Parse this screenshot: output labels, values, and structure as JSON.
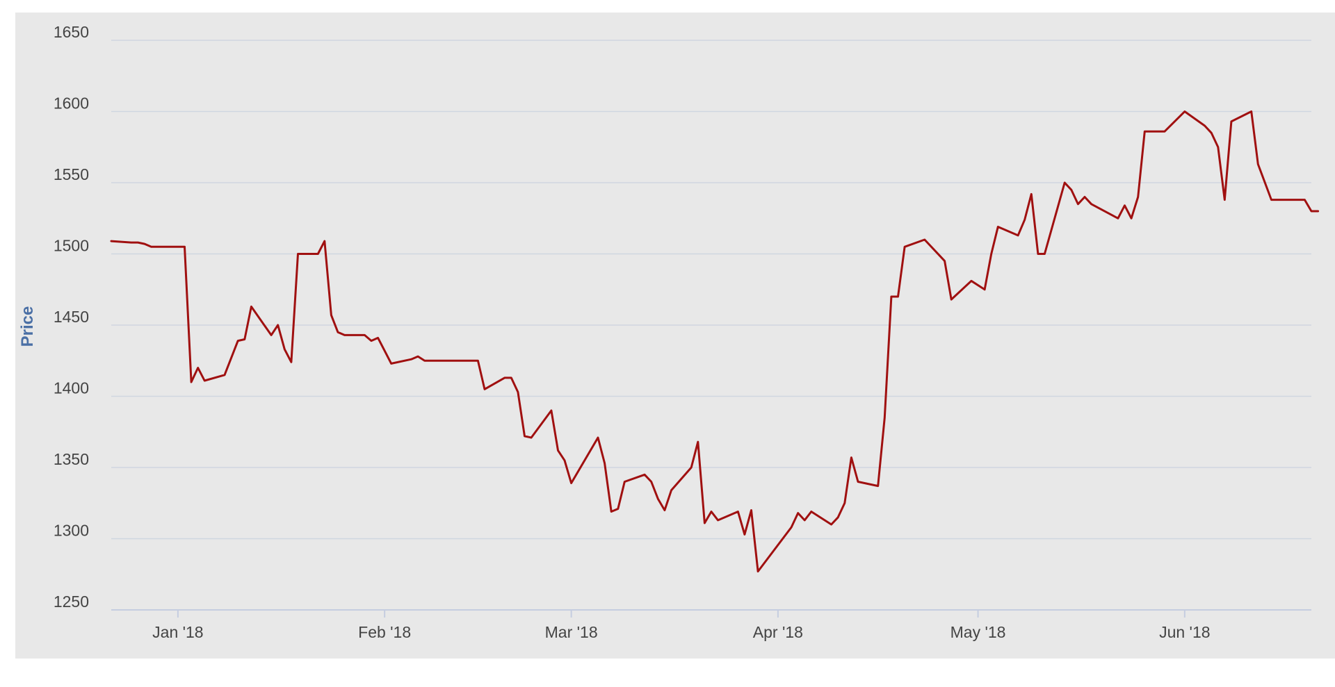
{
  "chart_data": {
    "type": "line",
    "title": "",
    "xlabel": "",
    "ylabel": "Price",
    "ylim": [
      1250,
      1650
    ],
    "yticks": [
      1250,
      1300,
      1350,
      1400,
      1450,
      1500,
      1550,
      1600,
      1650
    ],
    "xlim": [
      "2017-12-22",
      "2018-06-20"
    ],
    "xticks": [
      {
        "label": "Jan '18",
        "date": "2018-01-01"
      },
      {
        "label": "Feb '18",
        "date": "2018-02-01"
      },
      {
        "label": "Mar '18",
        "date": "2018-03-01"
      },
      {
        "label": "Apr '18",
        "date": "2018-04-01"
      },
      {
        "label": "May '18",
        "date": "2018-05-01"
      },
      {
        "label": "Jun '18",
        "date": "2018-06-01"
      }
    ],
    "grid": "horizontal",
    "legend": "none",
    "colors": {
      "background": "#e8e8e8",
      "line": "#a01010",
      "grid": "#cfd6e0",
      "axis": "#c5cde0"
    },
    "series": [
      {
        "color": "#a01010",
        "points": [
          [
            "2017-12-22",
            1509
          ],
          [
            "2017-12-25",
            1508
          ],
          [
            "2017-12-26",
            1508
          ],
          [
            "2017-12-27",
            1507
          ],
          [
            "2017-12-28",
            1505
          ],
          [
            "2017-12-31",
            1505
          ],
          [
            "2018-01-01",
            1505
          ],
          [
            "2018-01-02",
            1505
          ],
          [
            "2018-01-03",
            1410
          ],
          [
            "2018-01-04",
            1420
          ],
          [
            "2018-01-05",
            1411
          ],
          [
            "2018-01-08",
            1415
          ],
          [
            "2018-01-10",
            1439
          ],
          [
            "2018-01-11",
            1440
          ],
          [
            "2018-01-12",
            1463
          ],
          [
            "2018-01-15",
            1443
          ],
          [
            "2018-01-16",
            1450
          ],
          [
            "2018-01-17",
            1433
          ],
          [
            "2018-01-18",
            1424
          ],
          [
            "2018-01-19",
            1500
          ],
          [
            "2018-01-22",
            1500
          ],
          [
            "2018-01-23",
            1509
          ],
          [
            "2018-01-24",
            1457
          ],
          [
            "2018-01-25",
            1445
          ],
          [
            "2018-01-26",
            1443
          ],
          [
            "2018-01-29",
            1443
          ],
          [
            "2018-01-30",
            1439
          ],
          [
            "2018-01-31",
            1441
          ],
          [
            "2018-02-02",
            1423
          ],
          [
            "2018-02-05",
            1426
          ],
          [
            "2018-02-06",
            1428
          ],
          [
            "2018-02-07",
            1425
          ],
          [
            "2018-02-15",
            1425
          ],
          [
            "2018-02-16",
            1405
          ],
          [
            "2018-02-19",
            1413
          ],
          [
            "2018-02-20",
            1413
          ],
          [
            "2018-02-21",
            1403
          ],
          [
            "2018-02-22",
            1372
          ],
          [
            "2018-02-23",
            1371
          ],
          [
            "2018-02-26",
            1390
          ],
          [
            "2018-02-27",
            1362
          ],
          [
            "2018-02-28",
            1355
          ],
          [
            "2018-03-01",
            1339
          ],
          [
            "2018-03-05",
            1371
          ],
          [
            "2018-03-06",
            1353
          ],
          [
            "2018-03-07",
            1319
          ],
          [
            "2018-03-08",
            1321
          ],
          [
            "2018-03-09",
            1340
          ],
          [
            "2018-03-12",
            1345
          ],
          [
            "2018-03-13",
            1340
          ],
          [
            "2018-03-14",
            1328
          ],
          [
            "2018-03-15",
            1320
          ],
          [
            "2018-03-16",
            1334
          ],
          [
            "2018-03-19",
            1350
          ],
          [
            "2018-03-20",
            1368
          ],
          [
            "2018-03-21",
            1311
          ],
          [
            "2018-03-22",
            1319
          ],
          [
            "2018-03-23",
            1313
          ],
          [
            "2018-03-26",
            1319
          ],
          [
            "2018-03-27",
            1303
          ],
          [
            "2018-03-28",
            1320
          ],
          [
            "2018-03-29",
            1277
          ],
          [
            "2018-04-03",
            1308
          ],
          [
            "2018-04-04",
            1318
          ],
          [
            "2018-04-05",
            1313
          ],
          [
            "2018-04-06",
            1319
          ],
          [
            "2018-04-09",
            1310
          ],
          [
            "2018-04-10",
            1315
          ],
          [
            "2018-04-11",
            1325
          ],
          [
            "2018-04-12",
            1357
          ],
          [
            "2018-04-13",
            1340
          ],
          [
            "2018-04-16",
            1337
          ],
          [
            "2018-04-17",
            1385
          ],
          [
            "2018-04-18",
            1470
          ],
          [
            "2018-04-19",
            1470
          ],
          [
            "2018-04-20",
            1505
          ],
          [
            "2018-04-23",
            1510
          ],
          [
            "2018-04-26",
            1495
          ],
          [
            "2018-04-27",
            1468
          ],
          [
            "2018-04-30",
            1481
          ],
          [
            "2018-05-02",
            1475
          ],
          [
            "2018-05-03",
            1500
          ],
          [
            "2018-05-04",
            1519
          ],
          [
            "2018-05-07",
            1513
          ],
          [
            "2018-05-08",
            1524
          ],
          [
            "2018-05-09",
            1542
          ],
          [
            "2018-05-10",
            1500
          ],
          [
            "2018-05-11",
            1500
          ],
          [
            "2018-05-14",
            1550
          ],
          [
            "2018-05-15",
            1545
          ],
          [
            "2018-05-16",
            1535
          ],
          [
            "2018-05-17",
            1540
          ],
          [
            "2018-05-18",
            1535
          ],
          [
            "2018-05-22",
            1525
          ],
          [
            "2018-05-23",
            1534
          ],
          [
            "2018-05-24",
            1525
          ],
          [
            "2018-05-25",
            1540
          ],
          [
            "2018-05-26",
            1586
          ],
          [
            "2018-05-29",
            1586
          ],
          [
            "2018-06-01",
            1600
          ],
          [
            "2018-06-04",
            1590
          ],
          [
            "2018-06-05",
            1585
          ],
          [
            "2018-06-06",
            1575
          ],
          [
            "2018-06-07",
            1538
          ],
          [
            "2018-06-08",
            1593
          ],
          [
            "2018-06-11",
            1600
          ],
          [
            "2018-06-12",
            1563
          ],
          [
            "2018-06-14",
            1538
          ],
          [
            "2018-06-19",
            1538
          ],
          [
            "2018-06-20",
            1530
          ],
          [
            "2018-06-21",
            1530
          ]
        ]
      }
    ]
  }
}
